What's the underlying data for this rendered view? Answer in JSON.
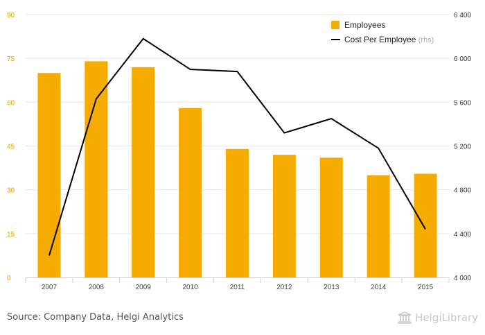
{
  "chart_data": {
    "type": "bar",
    "categories": [
      "2007",
      "2008",
      "2009",
      "2010",
      "2011",
      "2012",
      "2013",
      "2014",
      "2015"
    ],
    "series": [
      {
        "name": "Employees",
        "type": "bar",
        "axis": "left",
        "color": "#f5ab00",
        "values": [
          70,
          74,
          72,
          58,
          44,
          42,
          41,
          35,
          35.5
        ]
      },
      {
        "name": "Cost Per Employee",
        "type": "line",
        "axis": "right",
        "color": "#000000",
        "values": [
          4200,
          5630,
          6180,
          5900,
          5880,
          5320,
          5450,
          5180,
          4440
        ]
      }
    ],
    "y_left": {
      "min": 0,
      "max": 90,
      "ticks": [
        "0",
        "15",
        "30",
        "45",
        "60",
        "75",
        "90"
      ]
    },
    "y_right": {
      "min": 4000,
      "max": 6400,
      "ticks": [
        "4 000",
        "4 400",
        "4 800",
        "5 200",
        "5 600",
        "6 000",
        "6 400"
      ]
    },
    "legend": {
      "position": "top-right",
      "items": [
        {
          "label": "Employees",
          "suffix": ""
        },
        {
          "label": "Cost Per Employee",
          "suffix": "(rhs)"
        }
      ]
    },
    "grid": true
  },
  "footer": {
    "source": "Source: Company Data, Helgi Analytics",
    "logo_text": "HelgiLibrary"
  },
  "colors": {
    "bar": "#f5ab00",
    "line": "#000000",
    "left_ticks": "#e8a000",
    "right_ticks": "#333333",
    "grid": "#e6e6e6"
  }
}
